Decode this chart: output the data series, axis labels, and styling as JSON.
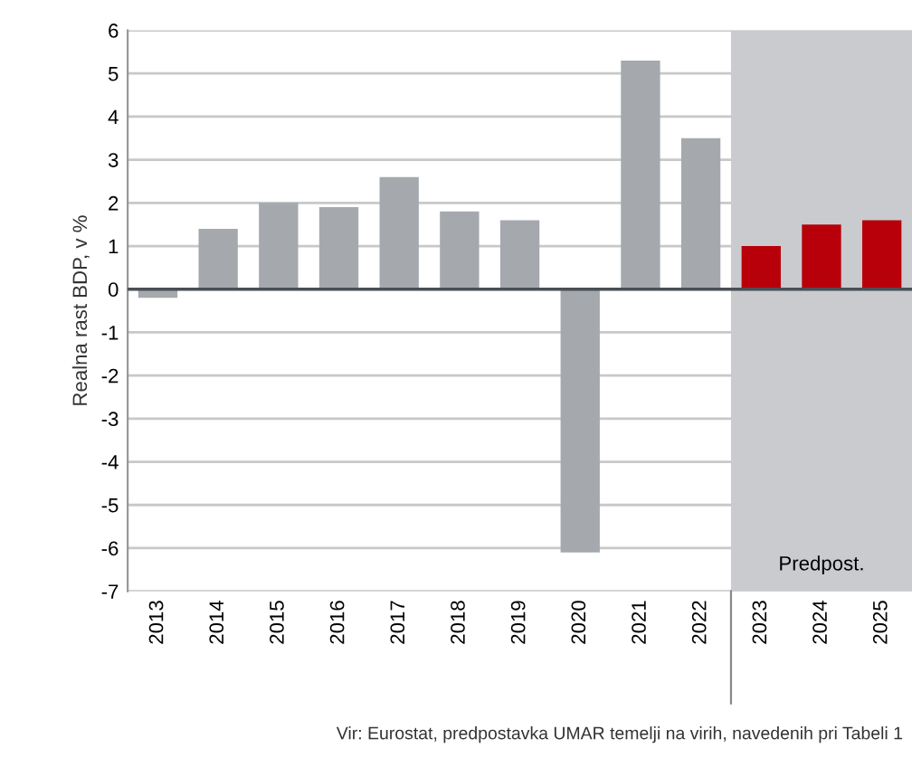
{
  "chart_data": {
    "type": "bar",
    "ylabel": "Realna rast BDP, v %",
    "categories": [
      "2013",
      "2014",
      "2015",
      "2016",
      "2017",
      "2018",
      "2019",
      "2020",
      "2021",
      "2022",
      "2023",
      "2024",
      "2025"
    ],
    "values": [
      -0.2,
      1.4,
      2.0,
      1.9,
      2.6,
      1.8,
      1.6,
      -6.1,
      5.3,
      3.5,
      1.0,
      1.5,
      1.6
    ],
    "colors": [
      "#a5a9ae",
      "#a5a9ae",
      "#a5a9ae",
      "#a5a9ae",
      "#a5a9ae",
      "#a5a9ae",
      "#a5a9ae",
      "#a5a9ae",
      "#a5a9ae",
      "#a5a9ae",
      "#b8000a",
      "#b8000a",
      "#b8000a"
    ],
    "ylim": [
      -7,
      6
    ],
    "yticks": [
      -7,
      -6,
      -5,
      -4,
      -3,
      -2,
      -1,
      0,
      1,
      2,
      3,
      4,
      5,
      6
    ],
    "grid": "y",
    "ref_lines": [
      {
        "axis": "y",
        "value": 0,
        "color": "#4a4f55"
      }
    ],
    "bands": [
      {
        "axis": "x",
        "from": "2023",
        "to": "2025",
        "label": "Predpost.",
        "color": "#c9cbcf"
      }
    ],
    "annotations": [
      "Vir: Eurostat, predpostavka UMAR temelji na virih, navedenih pri Tabeli 1"
    ]
  }
}
